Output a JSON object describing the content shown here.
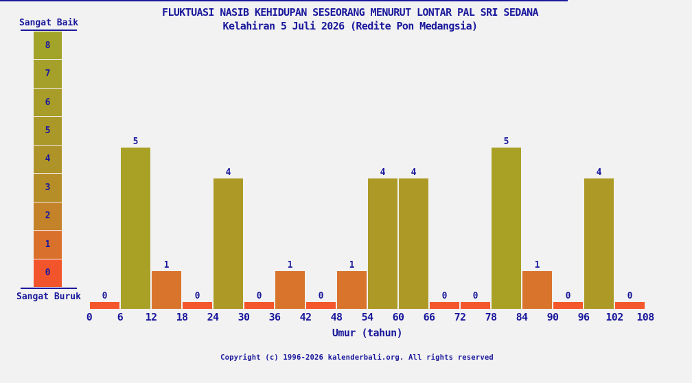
{
  "chart_data": {
    "type": "bar",
    "title": "FLUKTUASI NASIB KEHIDUPAN SESEORANG MENURUT LONTAR PAL SRI SEDANA",
    "subtitle": "Kelahiran 5 Juli 2026 (Redite Pon Medangsia)",
    "xlabel": "Umur (tahun)",
    "x_ticks": [
      0,
      6,
      12,
      18,
      24,
      30,
      36,
      42,
      48,
      54,
      60,
      66,
      72,
      78,
      84,
      90,
      96,
      102,
      108
    ],
    "bin_width_years": 6,
    "values": [
      0,
      5,
      1,
      0,
      4,
      0,
      1,
      0,
      1,
      4,
      4,
      0,
      0,
      5,
      1,
      0,
      4,
      0
    ],
    "bar_colors": [
      "#f4572b",
      "#a9a126",
      "#d9742c",
      "#f4572b",
      "#ad9a26",
      "#f4572b",
      "#d9742c",
      "#f4572b",
      "#d9742c",
      "#ad9a26",
      "#ad9a26",
      "#f4572b",
      "#f4572b",
      "#a9a126",
      "#d9742c",
      "#f4572b",
      "#ad9a26",
      "#f4572b"
    ],
    "value_range": [
      0,
      8
    ],
    "grid": false,
    "legend": {
      "position": "left",
      "top_label": "Sangat Baik",
      "bottom_label": "Sangat Buruk",
      "cells": [
        {
          "value": 8,
          "color": "#a2a329"
        },
        {
          "value": 7,
          "color": "#a5a029"
        },
        {
          "value": 6,
          "color": "#a79d28"
        },
        {
          "value": 5,
          "color": "#aa9928"
        },
        {
          "value": 4,
          "color": "#ae9428"
        },
        {
          "value": 3,
          "color": "#b68e27"
        },
        {
          "value": 2,
          "color": "#c48229"
        },
        {
          "value": 1,
          "color": "#d9712c"
        },
        {
          "value": 0,
          "color": "#f2552b"
        }
      ]
    }
  },
  "footer": {
    "copyright": "Copyright (c) 1996-2026 kalenderbali.org. All rights reserved"
  },
  "theme": {
    "background": "#f2f2f2",
    "text": "#1a189c",
    "axis": "#1a189c"
  }
}
